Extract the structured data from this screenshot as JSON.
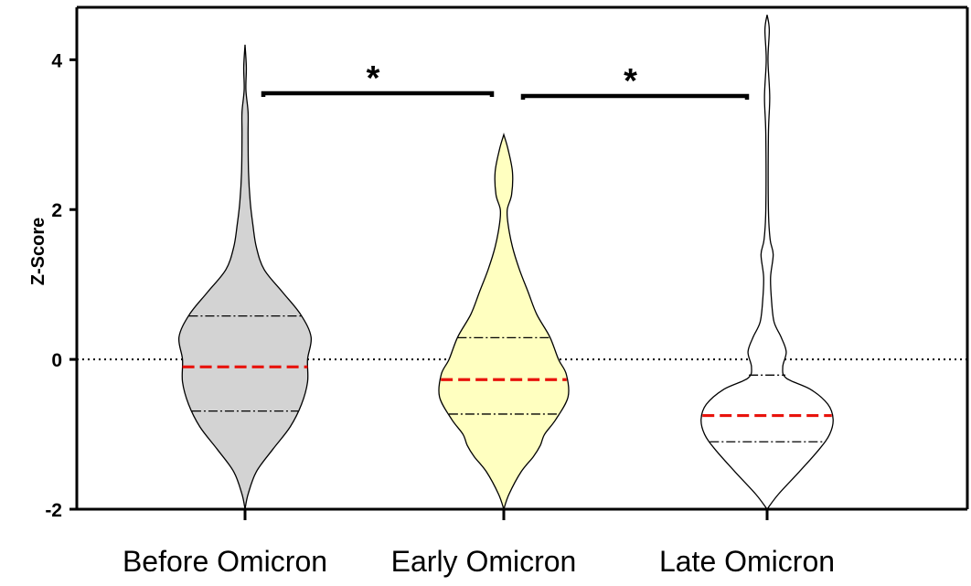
{
  "chart_data": {
    "type": "violin",
    "title": "",
    "xlabel": "",
    "ylabel": "Z-Score",
    "ylim": [
      -2,
      4.7
    ],
    "yticks": [
      -2,
      0,
      2,
      4
    ],
    "ytick_labels": [
      "-2",
      "0",
      "2",
      "4"
    ],
    "reference_line": 0,
    "categories": [
      "Before Omicron",
      "Early Omicron",
      "Late Omicron"
    ],
    "series": [
      {
        "category": "Before Omicron",
        "color": "#d3d3d3",
        "median": -0.1,
        "q1": -0.69,
        "q3": 0.58,
        "min": -2.0,
        "max": 4.2,
        "density": [
          [
            -2.0,
            0.0
          ],
          [
            -1.8,
            0.035
          ],
          [
            -1.5,
            0.13
          ],
          [
            -1.2,
            0.32
          ],
          [
            -0.9,
            0.52
          ],
          [
            -0.6,
            0.65
          ],
          [
            -0.3,
            0.72
          ],
          [
            0.0,
            0.72
          ],
          [
            0.3,
            0.76
          ],
          [
            0.6,
            0.64
          ],
          [
            0.9,
            0.43
          ],
          [
            1.2,
            0.22
          ],
          [
            1.5,
            0.13
          ],
          [
            1.8,
            0.09
          ],
          [
            2.1,
            0.06
          ],
          [
            2.5,
            0.04
          ],
          [
            3.0,
            0.035
          ],
          [
            3.3,
            0.035
          ],
          [
            3.6,
            0.01
          ],
          [
            3.9,
            0.015
          ],
          [
            4.2,
            0.0
          ]
        ]
      },
      {
        "category": "Early Omicron",
        "color": "#ffffc0",
        "median": -0.27,
        "q1": -0.73,
        "q3": 0.29,
        "min": -2.0,
        "max": 3.0,
        "density": [
          [
            -2.0,
            0.0
          ],
          [
            -1.8,
            0.06
          ],
          [
            -1.5,
            0.2
          ],
          [
            -1.3,
            0.34
          ],
          [
            -1.15,
            0.42
          ],
          [
            -1.0,
            0.47
          ],
          [
            -0.8,
            0.6
          ],
          [
            -0.5,
            0.74
          ],
          [
            -0.2,
            0.72
          ],
          [
            0.0,
            0.63
          ],
          [
            0.3,
            0.53
          ],
          [
            0.6,
            0.38
          ],
          [
            0.9,
            0.28
          ],
          [
            1.2,
            0.18
          ],
          [
            1.5,
            0.1
          ],
          [
            1.8,
            0.05
          ],
          [
            2.0,
            0.04
          ],
          [
            2.2,
            0.09
          ],
          [
            2.5,
            0.1
          ],
          [
            2.8,
            0.05
          ],
          [
            3.0,
            0.0
          ]
        ]
      },
      {
        "category": "Late Omicron",
        "color": "#ffffff",
        "median": -0.75,
        "q1": -1.1,
        "q3": -0.21,
        "min": -2.0,
        "max": 4.6,
        "density": [
          [
            -2.0,
            0.0
          ],
          [
            -1.8,
            0.13
          ],
          [
            -1.5,
            0.37
          ],
          [
            -1.2,
            0.6
          ],
          [
            -1.0,
            0.72
          ],
          [
            -0.8,
            0.76
          ],
          [
            -0.6,
            0.7
          ],
          [
            -0.4,
            0.5
          ],
          [
            -0.25,
            0.22
          ],
          [
            -0.1,
            0.18
          ],
          [
            0.1,
            0.22
          ],
          [
            0.3,
            0.16
          ],
          [
            0.5,
            0.08
          ],
          [
            0.8,
            0.05
          ],
          [
            1.1,
            0.04
          ],
          [
            1.4,
            0.07
          ],
          [
            1.6,
            0.035
          ],
          [
            2.0,
            0.015
          ],
          [
            3.0,
            0.015
          ],
          [
            3.5,
            0.03
          ],
          [
            4.0,
            0.01
          ],
          [
            4.4,
            0.025
          ],
          [
            4.6,
            0.0
          ]
        ]
      }
    ],
    "comparisons": [
      {
        "from": "Before Omicron",
        "to": "Early Omicron",
        "label": "*"
      },
      {
        "from": "Early Omicron",
        "to": "Late Omicron",
        "label": "*"
      }
    ]
  }
}
